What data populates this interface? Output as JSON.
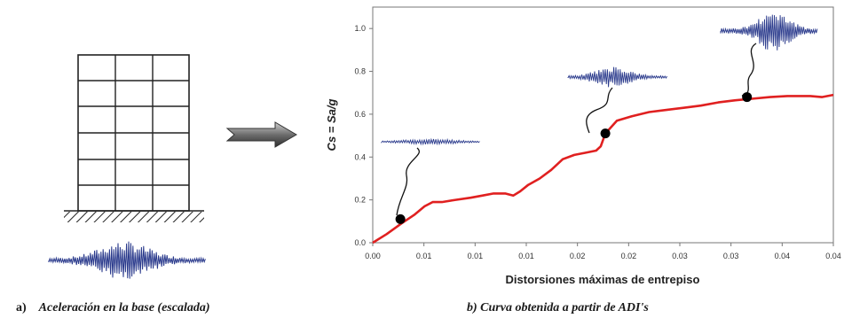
{
  "panel_a": {
    "caption_letter": "a)",
    "caption_text": "Aceleración en la base (escalada)"
  },
  "panel_b": {
    "caption_text": "b) Curva obtenida a partir de ADI's"
  },
  "chart_data": {
    "type": "line",
    "xlabel": "Distorsiones máximas de entrepiso",
    "ylabel": "Cs = Sa/g",
    "xlim": [
      0.0,
      0.04
    ],
    "ylim": [
      0.0,
      1.1
    ],
    "x_tick_labels": [
      "0.00",
      "0.01",
      "0.01",
      "0.01",
      "0.02",
      "0.02",
      "0.03",
      "0.03",
      "0.04",
      "0.04"
    ],
    "y_tick_labels": [
      "0.0",
      "0.2",
      "0.4",
      "0.6",
      "0.8",
      "1.0"
    ],
    "y_ticks": [
      0.0,
      0.2,
      0.4,
      0.6,
      0.8,
      1.0
    ],
    "series": [
      {
        "color": "#e02020",
        "x": [
          0.0,
          0.0012,
          0.0025,
          0.0036,
          0.0045,
          0.0052,
          0.006,
          0.0072,
          0.0085,
          0.0095,
          0.0105,
          0.0115,
          0.0122,
          0.0128,
          0.0135,
          0.0145,
          0.0155,
          0.0165,
          0.0175,
          0.0185,
          0.0194,
          0.0198,
          0.0202,
          0.0212,
          0.0225,
          0.024,
          0.0255,
          0.027,
          0.0285,
          0.03,
          0.0315,
          0.0325,
          0.0345,
          0.036,
          0.038,
          0.039,
          0.04
        ],
        "y": [
          0.0,
          0.04,
          0.09,
          0.13,
          0.17,
          0.19,
          0.19,
          0.2,
          0.21,
          0.22,
          0.23,
          0.23,
          0.22,
          0.24,
          0.27,
          0.3,
          0.34,
          0.39,
          0.41,
          0.42,
          0.43,
          0.45,
          0.51,
          0.57,
          0.59,
          0.61,
          0.62,
          0.63,
          0.64,
          0.655,
          0.665,
          0.67,
          0.68,
          0.685,
          0.685,
          0.68,
          0.69
        ]
      }
    ],
    "markers": [
      {
        "x": 0.0024,
        "y": 0.11
      },
      {
        "x": 0.0202,
        "y": 0.51
      },
      {
        "x": 0.0325,
        "y": 0.68
      }
    ],
    "grid": false
  },
  "colors": {
    "curve": "#e02020",
    "waveform": "#2a3a8c",
    "marker": "#000000",
    "arrow": "#555555"
  }
}
